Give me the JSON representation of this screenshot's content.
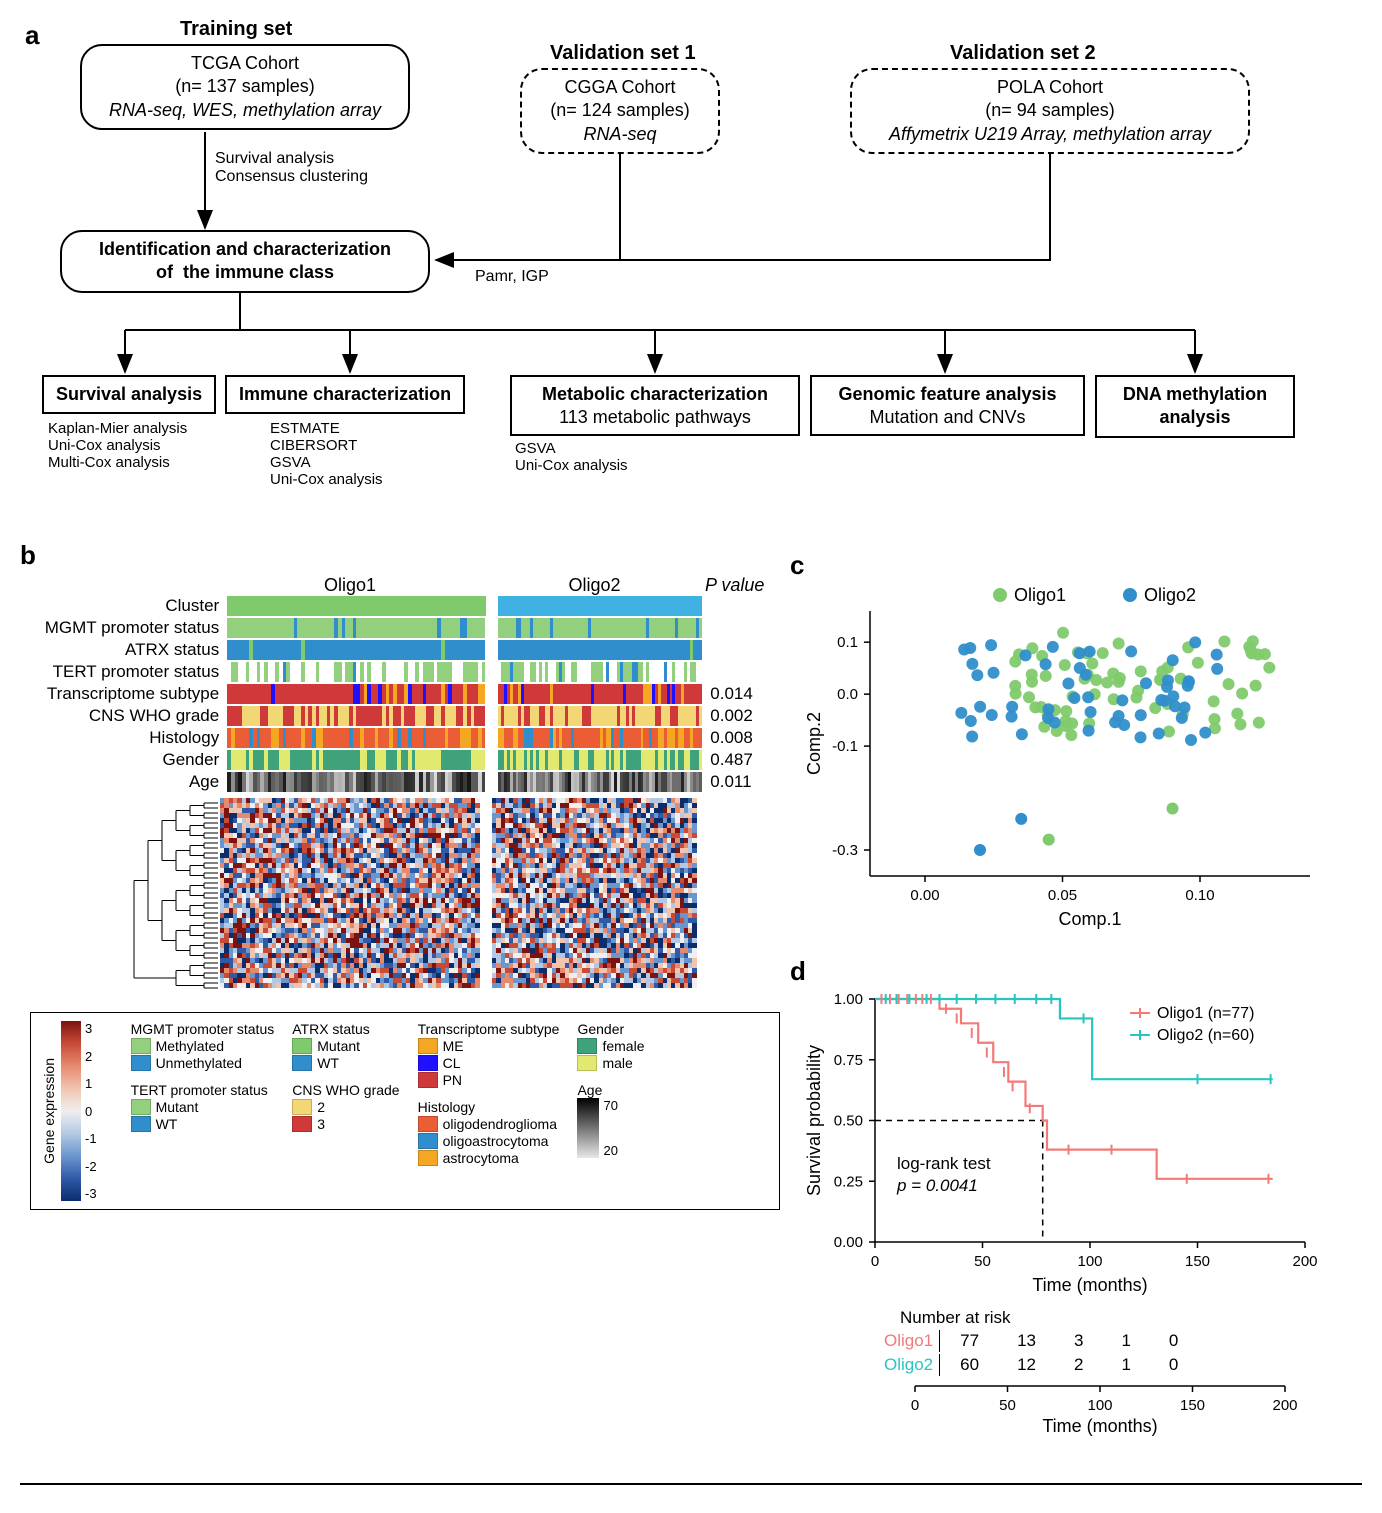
{
  "panelA": {
    "trainingHeading": "Training set",
    "val1Heading": "Validation set 1",
    "val2Heading": "Validation set 2",
    "training": {
      "line1": "TCGA Cohort",
      "line2": "(n= 137 samples)",
      "line3": "RNA-seq, WES, methylation array"
    },
    "val1": {
      "line1": "CGGA Cohort",
      "line2": "(n= 124 samples)",
      "line3": "RNA-seq"
    },
    "val2": {
      "line1": "POLA Cohort",
      "line2": "(n= 94 samples)",
      "line3": "Affymetrix U219 Array, methylation array"
    },
    "annotTrain": "Survival analysis\nConsensus clustering",
    "annotPamr": "Pamr, IGP",
    "identBox": "Identification and characterization\nof  the immune class",
    "out1": {
      "title": "Survival analysis",
      "sub": "Kaplan-Mier analysis\nUni-Cox analysis\nMulti-Cox analysis"
    },
    "out2": {
      "title": "Immune characterization",
      "sub": "ESTMATE\nCIBERSORT\nGSVA\nUni-Cox analysis"
    },
    "out3": {
      "title": "Metabolic characterization",
      "title2": "113 metabolic pathways",
      "sub": "GSVA\nUni-Cox analysis"
    },
    "out4": {
      "title": "Genomic feature analysis",
      "title2": "Mutation and CNVs"
    },
    "out5": {
      "title": "DNA methylation\nanalysis"
    }
  },
  "panelB": {
    "groupLabels": [
      "Oligo1",
      "Oligo2"
    ],
    "pvalHeader": "P value",
    "tracks": [
      {
        "label": "Cluster",
        "pval": ""
      },
      {
        "label": "MGMT promoter status",
        "pval": ""
      },
      {
        "label": "ATRX status",
        "pval": ""
      },
      {
        "label": "TERT promoter status",
        "pval": ""
      },
      {
        "label": "Transcriptome subtype",
        "pval": "0.014"
      },
      {
        "label": "CNS WHO grade",
        "pval": "0.002"
      },
      {
        "label": "Histology",
        "pval": "0.008"
      },
      {
        "label": "Gender",
        "pval": "0.487"
      },
      {
        "label": "Age",
        "pval": "0.011"
      }
    ],
    "groupWidths": [
      260,
      205
    ],
    "groupGap": 12,
    "colors": {
      "oligo1": "#7fca6c",
      "oligo2": "#3fb1e3",
      "mgmtMeth": "#93d07e",
      "mgmtUnmeth": "#2f8ecb",
      "atrxMut": "#7fca6c",
      "atrxWT": "#2f8ecb",
      "tertMut": "#93d07e",
      "tertWT": "#2f8ecb",
      "tertNA": "#ffffff",
      "tsME": "#f5a623",
      "tsCL": "#1f10ff",
      "tsPN": "#d0393a",
      "grade2": "#f3d774",
      "grade3": "#d0393a",
      "histOligo": "#ea5d35",
      "histOligoAstro": "#2f8ecb",
      "histAstro": "#f5a623",
      "genderF": "#3fa27a",
      "genderM": "#e1ea6e"
    },
    "heatmap": {
      "rows": 38,
      "cols": [
        60,
        48
      ],
      "palette": [
        "#0a2d6b",
        "#2f5aa8",
        "#6a96cf",
        "#b3c9e3",
        "#efefef",
        "#f1c4b0",
        "#e68a6f",
        "#c84b37",
        "#7b1410"
      ]
    },
    "colorbar": {
      "label": "Gene expression",
      "ticks": [
        "3",
        "2",
        "1",
        "0",
        "-1",
        "-2",
        "-3"
      ]
    },
    "legend": {
      "mgmt": {
        "title": "MGMT promoter status",
        "items": [
          [
            "Methylated",
            "mgmtMeth"
          ],
          [
            "Unmethylated",
            "mgmtUnmeth"
          ]
        ]
      },
      "tert": {
        "title": "TERT promoter status",
        "items": [
          [
            "Mutant",
            "tertMut"
          ],
          [
            "WT",
            "tertWT"
          ]
        ]
      },
      "atrx": {
        "title": "ATRX status",
        "items": [
          [
            "Mutant",
            "atrxMut"
          ],
          [
            "WT",
            "atrxWT"
          ]
        ]
      },
      "grade": {
        "title": "CNS WHO grade",
        "items": [
          [
            "2",
            "grade2"
          ],
          [
            "3",
            "grade3"
          ]
        ]
      },
      "ts": {
        "title": "Transcriptome subtype",
        "items": [
          [
            "ME",
            "tsME"
          ],
          [
            "CL",
            "tsCL"
          ],
          [
            "PN",
            "tsPN"
          ]
        ]
      },
      "hist": {
        "title": "Histology",
        "items": [
          [
            "oligodendroglioma",
            "histOligo"
          ],
          [
            "oligoastrocytoma",
            "histOligoAstro"
          ],
          [
            "astrocytoma",
            "histAstro"
          ]
        ]
      },
      "gender": {
        "title": "Gender",
        "items": [
          [
            "female",
            "genderF"
          ],
          [
            "male",
            "genderM"
          ]
        ]
      },
      "age": {
        "title": "Age",
        "max": "70",
        "min": "20"
      }
    }
  },
  "panelC": {
    "type": "scatter",
    "xlabel": "Comp.1",
    "ylabel": "Comp.2",
    "xlim": [
      -0.02,
      0.14
    ],
    "ylim": [
      -0.35,
      0.16
    ],
    "xticks": [
      0.0,
      0.05,
      0.1
    ],
    "yticks": [
      -0.3,
      -0.1,
      0.0,
      0.1
    ],
    "colors": {
      "Oligo1": "#7fca6c",
      "Oligo2": "#2f8ecb"
    },
    "legend": [
      [
        "Oligo1",
        "#7fca6c"
      ],
      [
        "Oligo2",
        "#2f8ecb"
      ]
    ],
    "pointRadius": 6
  },
  "panelD": {
    "type": "km",
    "xlabel": "Time (months)",
    "ylabel": "Survival probability",
    "xlim": [
      0,
      200
    ],
    "ylim": [
      0,
      1
    ],
    "xticks": [
      0,
      50,
      100,
      150,
      200
    ],
    "yticks": [
      "0.00",
      "0.25",
      "0.50",
      "0.75",
      "1.00"
    ],
    "colors": {
      "Oligo1": "#f37a78",
      "Oligo2": "#29c6c1"
    },
    "legendLines": [
      "Oligo1 (n=77)",
      "Oligo2 (n=60)"
    ],
    "annot": "log-rank test\np = 0.0041",
    "oligo1": [
      [
        0,
        1.0
      ],
      [
        20,
        1.0
      ],
      [
        30,
        0.96
      ],
      [
        40,
        0.9
      ],
      [
        48,
        0.82
      ],
      [
        55,
        0.74
      ],
      [
        62,
        0.66
      ],
      [
        70,
        0.56
      ],
      [
        78,
        0.5
      ],
      [
        80,
        0.38
      ],
      [
        95,
        0.38
      ],
      [
        130,
        0.38
      ],
      [
        131,
        0.26
      ],
      [
        185,
        0.26
      ]
    ],
    "oligo2": [
      [
        0,
        1.0
      ],
      [
        85,
        1.0
      ],
      [
        86,
        0.92
      ],
      [
        100,
        0.92
      ],
      [
        101,
        0.67
      ],
      [
        185,
        0.67
      ]
    ],
    "censor1": [
      [
        3,
        1.0
      ],
      [
        7,
        1.0
      ],
      [
        11,
        1.0
      ],
      [
        15,
        1.0
      ],
      [
        19,
        1.0
      ],
      [
        22,
        1.0
      ],
      [
        26,
        1.0
      ],
      [
        33,
        0.96
      ],
      [
        38,
        0.92
      ],
      [
        45,
        0.86
      ],
      [
        52,
        0.78
      ],
      [
        60,
        0.7
      ],
      [
        64,
        0.64
      ],
      [
        72,
        0.55
      ],
      [
        90,
        0.38
      ],
      [
        110,
        0.38
      ],
      [
        145,
        0.26
      ],
      [
        183,
        0.26
      ]
    ],
    "censor2": [
      [
        5,
        1.0
      ],
      [
        10,
        1.0
      ],
      [
        16,
        1.0
      ],
      [
        24,
        1.0
      ],
      [
        30,
        1.0
      ],
      [
        38,
        1.0
      ],
      [
        47,
        1.0
      ],
      [
        56,
        1.0
      ],
      [
        65,
        1.0
      ],
      [
        75,
        1.0
      ],
      [
        82,
        1.0
      ],
      [
        97,
        0.92
      ],
      [
        150,
        0.67
      ],
      [
        184,
        0.67
      ]
    ],
    "riskHeader": "Number at risk",
    "risk": {
      "times": [
        0,
        50,
        100,
        150,
        200
      ],
      "Oligo1": [
        77,
        13,
        3,
        1,
        0
      ],
      "Oligo2": [
        60,
        12,
        2,
        1,
        0
      ]
    }
  }
}
